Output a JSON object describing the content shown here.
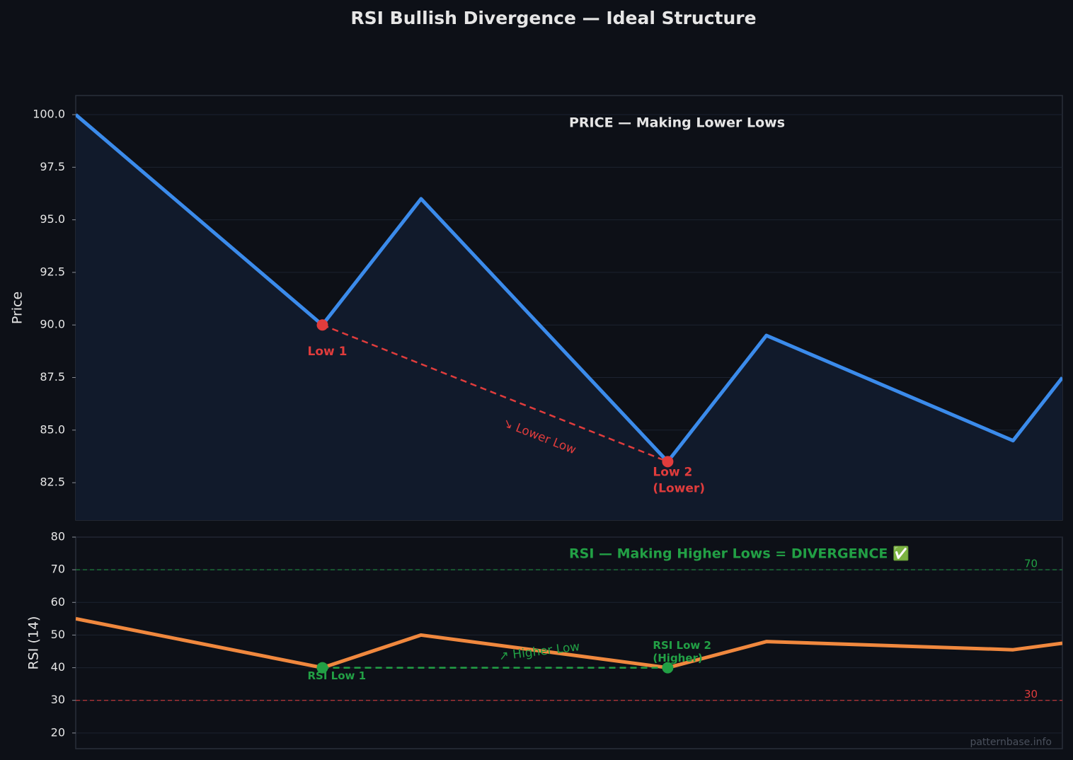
{
  "title": "RSI Bullish Divergence — Ideal Structure",
  "chart_data": [
    {
      "type": "line",
      "subtitle": "PRICE — Making Lower Lows",
      "ylabel": "Price",
      "x": [
        0,
        25,
        35,
        60,
        70,
        95,
        100
      ],
      "xlim": [
        0,
        100
      ],
      "ylim": [
        80.72,
        100.91
      ],
      "yticks": [
        {
          "value": 100,
          "label": "100.0"
        },
        97.5,
        {
          "value": 95,
          "label": "95.0"
        },
        92.5,
        {
          "value": 90,
          "label": "90.0"
        },
        87.5,
        {
          "value": 85,
          "label": "85.0"
        },
        82.5
      ],
      "grid": true,
      "fill": true,
      "series": [
        {
          "color": "#3b8beb",
          "values": [
            100,
            90,
            96,
            83.5,
            89.5,
            84.5,
            87.5
          ]
        }
      ],
      "markers": {
        "color": "#e03c3c",
        "labels": [
          [
            "Low 1"
          ],
          [
            "Low 2",
            "(Lower)"
          ]
        ]
      },
      "trend_label": "↘ Lower Low"
    },
    {
      "type": "line",
      "subtitle": "RSI — Making Higher Lows = DIVERGENCE ✅",
      "ylabel": "RSI (14)",
      "x": [
        0,
        25,
        35,
        60,
        70,
        95,
        100
      ],
      "xlim": [
        0,
        100
      ],
      "ylim": [
        15.2,
        80
      ],
      "yticks": [
        20,
        30,
        40,
        50,
        60,
        70,
        80
      ],
      "grid": true,
      "fill": false,
      "series": [
        {
          "color": "#f0883e",
          "values": [
            55,
            40,
            50,
            40,
            48,
            45.5,
            47.5
          ]
        }
      ],
      "markers": {
        "color": "#22a045",
        "labels": [
          [
            "RSI Low 1"
          ],
          [
            "RSI Low 2",
            "(Higher)"
          ]
        ]
      },
      "trend_label": "↗ Higher Low",
      "hlines": [
        {
          "value": 70,
          "color": "#22a045"
        },
        {
          "value": 30,
          "color": "#e03c3c"
        }
      ],
      "watermark": "patternbase.info"
    }
  ]
}
